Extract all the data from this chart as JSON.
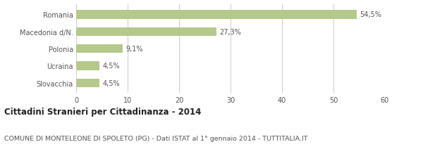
{
  "categories": [
    "Romania",
    "Macedonia d/N.",
    "Polonia",
    "Ucraina",
    "Slovacchia"
  ],
  "values": [
    54.5,
    27.3,
    9.1,
    4.5,
    4.5
  ],
  "labels": [
    "54,5%",
    "27,3%",
    "9,1%",
    "4,5%",
    "4,5%"
  ],
  "bar_color": "#b5c98a",
  "xlim": [
    0,
    60
  ],
  "xticks": [
    0,
    10,
    20,
    30,
    40,
    50,
    60
  ],
  "title": "Cittadini Stranieri per Cittadinanza - 2014",
  "subtitle": "COMUNE DI MONTELEONE DI SPOLETO (PG) - Dati ISTAT al 1° gennaio 2014 - TUTTITALIA.IT",
  "title_fontsize": 8.5,
  "subtitle_fontsize": 6.8,
  "label_fontsize": 7,
  "tick_fontsize": 7,
  "background_color": "#ffffff",
  "grid_color": "#cccccc",
  "text_color": "#555555",
  "bar_height": 0.5
}
